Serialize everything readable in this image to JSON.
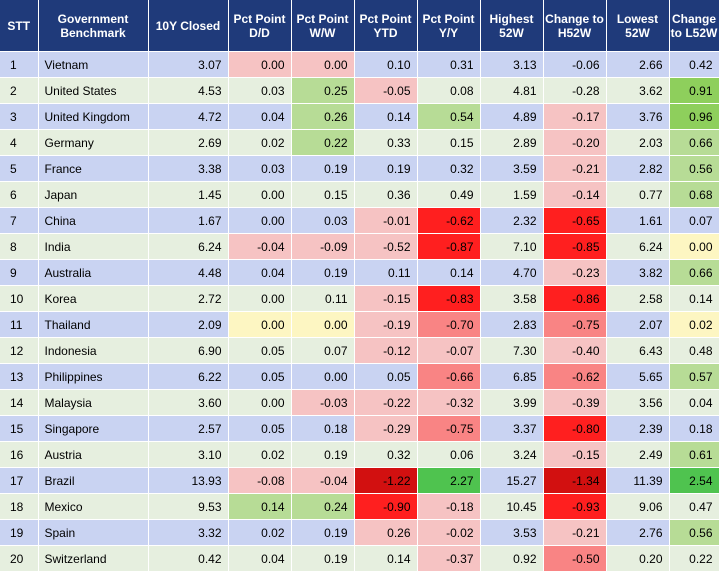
{
  "headers": [
    "STT",
    "Government Benchmark",
    "10Y Closed",
    "Pct Point D/D",
    "Pct Point W/W",
    "Pct Point YTD",
    "Pct Point Y/Y",
    "Highest 52W",
    "Change to H52W",
    "Lowest 52W",
    "Change to L52W"
  ],
  "rows": [
    {
      "stt": "1",
      "name": "Vietnam",
      "closed": "3.07",
      "dd": "0.00",
      "ww": "0.00",
      "ytd": "0.10",
      "yy": "0.31",
      "h52": "3.13",
      "ch52": "-0.06",
      "l52": "2.66",
      "cl52": "0.42"
    },
    {
      "stt": "2",
      "name": "United States",
      "closed": "4.53",
      "dd": "0.03",
      "ww": "0.25",
      "ytd": "-0.05",
      "yy": "0.08",
      "h52": "4.81",
      "ch52": "-0.28",
      "l52": "3.62",
      "cl52": "0.91"
    },
    {
      "stt": "3",
      "name": "United Kingdom",
      "closed": "4.72",
      "dd": "0.04",
      "ww": "0.26",
      "ytd": "0.14",
      "yy": "0.54",
      "h52": "4.89",
      "ch52": "-0.17",
      "l52": "3.76",
      "cl52": "0.96"
    },
    {
      "stt": "4",
      "name": "Germany",
      "closed": "2.69",
      "dd": "0.02",
      "ww": "0.22",
      "ytd": "0.33",
      "yy": "0.15",
      "h52": "2.89",
      "ch52": "-0.20",
      "l52": "2.03",
      "cl52": "0.66"
    },
    {
      "stt": "5",
      "name": "France",
      "closed": "3.38",
      "dd": "0.03",
      "ww": "0.19",
      "ytd": "0.19",
      "yy": "0.32",
      "h52": "3.59",
      "ch52": "-0.21",
      "l52": "2.82",
      "cl52": "0.56"
    },
    {
      "stt": "6",
      "name": "Japan",
      "closed": "1.45",
      "dd": "0.00",
      "ww": "0.15",
      "ytd": "0.36",
      "yy": "0.49",
      "h52": "1.59",
      "ch52": "-0.14",
      "l52": "0.77",
      "cl52": "0.68"
    },
    {
      "stt": "7",
      "name": "China",
      "closed": "1.67",
      "dd": "0.00",
      "ww": "0.03",
      "ytd": "-0.01",
      "yy": "-0.62",
      "h52": "2.32",
      "ch52": "-0.65",
      "l52": "1.61",
      "cl52": "0.07"
    },
    {
      "stt": "8",
      "name": "India",
      "closed": "6.24",
      "dd": "-0.04",
      "ww": "-0.09",
      "ytd": "-0.52",
      "yy": "-0.87",
      "h52": "7.10",
      "ch52": "-0.85",
      "l52": "6.24",
      "cl52": "0.00"
    },
    {
      "stt": "9",
      "name": "Australia",
      "closed": "4.48",
      "dd": "0.04",
      "ww": "0.19",
      "ytd": "0.11",
      "yy": "0.14",
      "h52": "4.70",
      "ch52": "-0.23",
      "l52": "3.82",
      "cl52": "0.66"
    },
    {
      "stt": "10",
      "name": "Korea",
      "closed": "2.72",
      "dd": "0.00",
      "ww": "0.11",
      "ytd": "-0.15",
      "yy": "-0.83",
      "h52": "3.58",
      "ch52": "-0.86",
      "l52": "2.58",
      "cl52": "0.14"
    },
    {
      "stt": "11",
      "name": "Thailand",
      "closed": "2.09",
      "dd": "0.00",
      "ww": "0.00",
      "ytd": "-0.19",
      "yy": "-0.70",
      "h52": "2.83",
      "ch52": "-0.75",
      "l52": "2.07",
      "cl52": "0.02"
    },
    {
      "stt": "12",
      "name": "Indonesia",
      "closed": "6.90",
      "dd": "0.05",
      "ww": "0.07",
      "ytd": "-0.12",
      "yy": "-0.07",
      "h52": "7.30",
      "ch52": "-0.40",
      "l52": "6.43",
      "cl52": "0.48"
    },
    {
      "stt": "13",
      "name": "Philippines",
      "closed": "6.22",
      "dd": "0.05",
      "ww": "0.00",
      "ytd": "0.05",
      "yy": "-0.66",
      "h52": "6.85",
      "ch52": "-0.62",
      "l52": "5.65",
      "cl52": "0.57"
    },
    {
      "stt": "14",
      "name": "Malaysia",
      "closed": "3.60",
      "dd": "0.00",
      "ww": "-0.03",
      "ytd": "-0.22",
      "yy": "-0.32",
      "h52": "3.99",
      "ch52": "-0.39",
      "l52": "3.56",
      "cl52": "0.04"
    },
    {
      "stt": "15",
      "name": "Singapore",
      "closed": "2.57",
      "dd": "0.05",
      "ww": "0.18",
      "ytd": "-0.29",
      "yy": "-0.75",
      "h52": "3.37",
      "ch52": "-0.80",
      "l52": "2.39",
      "cl52": "0.18"
    },
    {
      "stt": "16",
      "name": "Austria",
      "closed": "3.10",
      "dd": "0.02",
      "ww": "0.19",
      "ytd": "0.32",
      "yy": "0.06",
      "h52": "3.24",
      "ch52": "-0.15",
      "l52": "2.49",
      "cl52": "0.61"
    },
    {
      "stt": "17",
      "name": "Brazil",
      "closed": "13.93",
      "dd": "-0.08",
      "ww": "-0.04",
      "ytd": "-1.22",
      "yy": "2.27",
      "h52": "15.27",
      "ch52": "-1.34",
      "l52": "11.39",
      "cl52": "2.54"
    },
    {
      "stt": "18",
      "name": "Mexico",
      "closed": "9.53",
      "dd": "0.14",
      "ww": "0.24",
      "ytd": "-0.90",
      "yy": "-0.18",
      "h52": "10.45",
      "ch52": "-0.93",
      "l52": "9.06",
      "cl52": "0.47"
    },
    {
      "stt": "19",
      "name": "Spain",
      "closed": "3.32",
      "dd": "0.02",
      "ww": "0.19",
      "ytd": "0.26",
      "yy": "-0.02",
      "h52": "3.53",
      "ch52": "-0.21",
      "l52": "2.76",
      "cl52": "0.56"
    },
    {
      "stt": "20",
      "name": "Switzerland",
      "closed": "0.42",
      "dd": "0.04",
      "ww": "0.19",
      "ytd": "0.14",
      "yy": "-0.37",
      "h52": "0.92",
      "ch52": "-0.50",
      "l52": "0.20",
      "cl52": "0.22"
    }
  ],
  "highlight_colors": {
    "light_red": "#f6c3c3",
    "med_red": "#f98484",
    "red": "#ff1f1f",
    "dark_red": "#d21010",
    "light_green": "#b7dc96",
    "green": "#8ecf5c",
    "bright_green": "#4fc34f",
    "yellow": "#fdf6c2",
    "header_blue": "#1f3a7a",
    "row_blue": "#c9d3f2",
    "row_green": "#e6efdf"
  },
  "cell_highlights": {
    "0": {
      "dd": "light_red",
      "ww": "light_red"
    },
    "1": {
      "ww": "light_green",
      "ytd": "light_red",
      "cl52": "green"
    },
    "2": {
      "ww": "light_green",
      "yy": "light_green",
      "ch52": "light_red",
      "cl52": "green"
    },
    "3": {
      "ww": "light_green",
      "ch52": "light_red",
      "cl52": "light_green"
    },
    "4": {
      "ch52": "light_red",
      "cl52": "light_green"
    },
    "5": {
      "ch52": "light_red",
      "cl52": "light_green"
    },
    "6": {
      "ytd": "light_red",
      "yy": "red",
      "ch52": "red"
    },
    "7": {
      "dd": "light_red",
      "ww": "light_red",
      "ytd": "light_red",
      "yy": "red",
      "ch52": "red",
      "cl52": "yellow"
    },
    "8": {
      "ch52": "light_red",
      "cl52": "light_green"
    },
    "9": {
      "ytd": "light_red",
      "yy": "red",
      "ch52": "red"
    },
    "10": {
      "dd": "yellow",
      "ww": "yellow",
      "ytd": "light_red",
      "yy": "med_red",
      "ch52": "med_red",
      "cl52": "yellow"
    },
    "11": {
      "ytd": "light_red",
      "yy": "light_red",
      "ch52": "light_red"
    },
    "12": {
      "yy": "med_red",
      "ch52": "med_red",
      "cl52": "light_green"
    },
    "13": {
      "ww": "light_red",
      "ytd": "light_red",
      "yy": "light_red",
      "ch52": "light_red"
    },
    "14": {
      "ytd": "light_red",
      "yy": "med_red",
      "ch52": "red"
    },
    "15": {
      "ch52": "light_red",
      "cl52": "light_green"
    },
    "16": {
      "dd": "light_red",
      "ww": "light_red",
      "ytd": "dark_red",
      "yy": "bright_green",
      "ch52": "dark_red",
      "cl52": "bright_green"
    },
    "17": {
      "dd": "light_green",
      "ww": "light_green",
      "ytd": "red",
      "yy": "light_red",
      "ch52": "red"
    },
    "18": {
      "ytd": "light_red",
      "yy": "light_red",
      "ch52": "light_red",
      "cl52": "light_green"
    },
    "19": {
      "yy": "light_red",
      "ch52": "med_red"
    }
  }
}
